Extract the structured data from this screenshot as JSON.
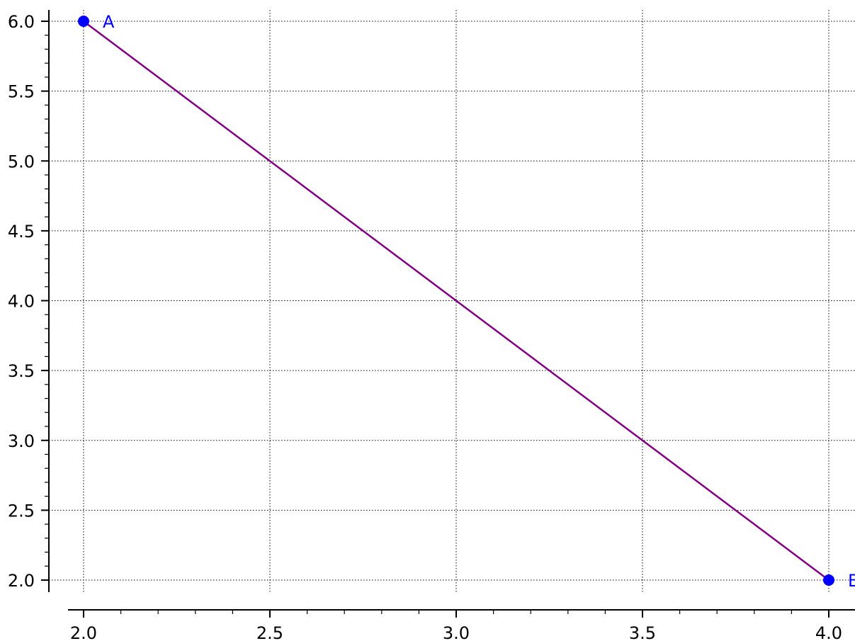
{
  "chart_data": {
    "type": "line",
    "title": "",
    "xlabel": "",
    "ylabel": "",
    "xlim": [
      1.99,
      4.0
    ],
    "ylim": [
      1.95,
      6.0
    ],
    "grid": true,
    "x_ticks": [
      2.0,
      2.5,
      3.0,
      3.5,
      4.0
    ],
    "x_tick_labels": [
      "2.0",
      "2.5",
      "3.0",
      "3.5",
      "4.0"
    ],
    "y_ticks": [
      2.0,
      2.5,
      3.0,
      3.5,
      4.0,
      4.5,
      5.0,
      5.5,
      6.0
    ],
    "y_tick_labels": [
      "2.0",
      "2.5",
      "3.0",
      "3.5",
      "4.0",
      "4.5",
      "5.0",
      "5.5",
      "6.0"
    ],
    "x_minor_step": 0.1,
    "y_minor_step": 0.1,
    "series": [
      {
        "x": [
          2.0,
          4.0
        ],
        "y": [
          6.0,
          2.0
        ],
        "color": "#800080"
      }
    ],
    "points": [
      {
        "label": "A",
        "x": 2.0,
        "y": 6.0,
        "color": "#0000ff"
      },
      {
        "label": "B",
        "x": 4.0,
        "y": 2.0,
        "color": "#0000ff"
      }
    ]
  }
}
